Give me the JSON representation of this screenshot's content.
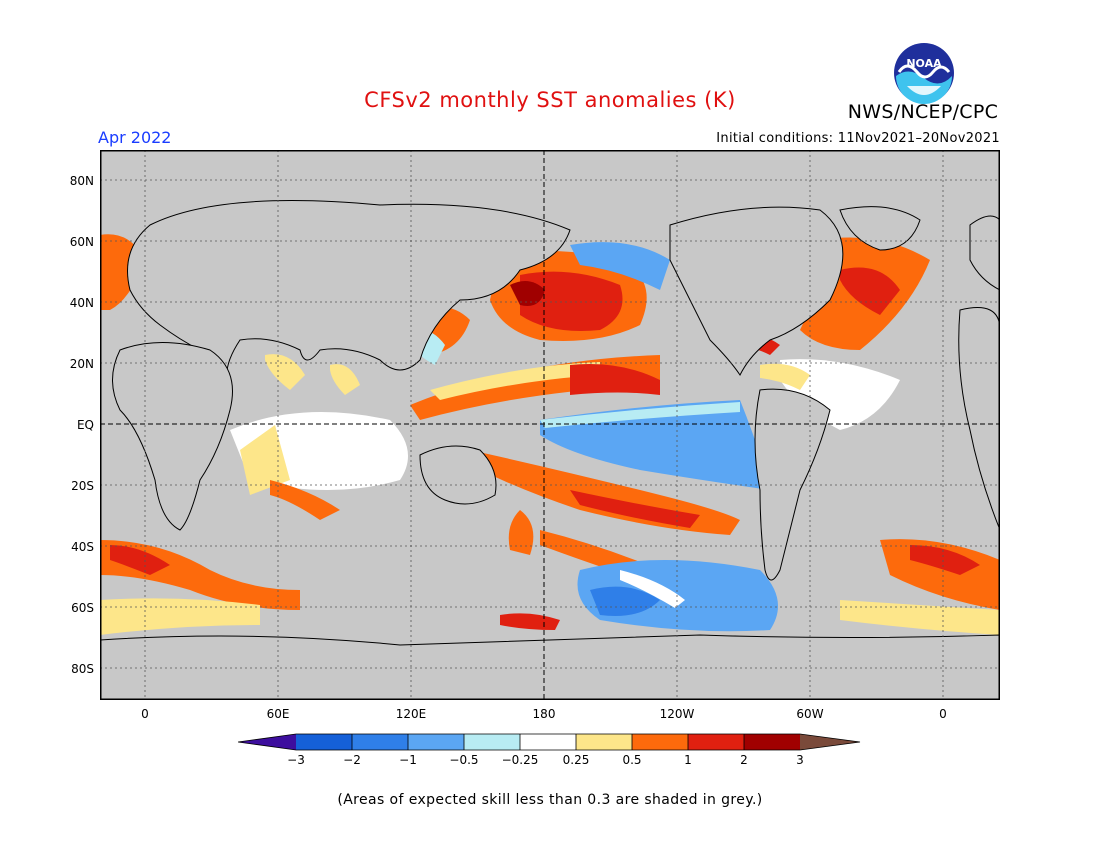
{
  "title": "CFSv2 monthly SST anomalies (K)",
  "agency": "NWS/NCEP/CPC",
  "logo_text": "NOAA",
  "month": "Apr 2022",
  "initial_conditions": "Initial conditions: 11Nov2021–20Nov2021",
  "lat_labels": [
    "80N",
    "60N",
    "40N",
    "20N",
    "EQ",
    "20S",
    "40S",
    "60S",
    "80S"
  ],
  "lon_labels": [
    "0",
    "60E",
    "120E",
    "180",
    "120W",
    "60W",
    "0"
  ],
  "colorbar": {
    "labels": [
      "−3",
      "−2",
      "−1",
      "−0.5",
      "−0.25",
      "0.25",
      "0.5",
      "1",
      "2",
      "3"
    ],
    "colors": [
      "#3d0e9e",
      "#1560d8",
      "#2f7fe8",
      "#5ba6f3",
      "#b8ecf3",
      "#ffffff",
      "#fde68a",
      "#fd6a0c",
      "#e02010",
      "#a00000",
      "#7a4a3a"
    ]
  },
  "footnote": "(Areas of expected skill less than 0.3 are shaded in grey.)",
  "map_colors": {
    "ocean_grey": "#c8c8c8",
    "land": "#c8c8c8",
    "neutral": "#ffffff",
    "weak_warm": "#fde68a",
    "warm": "#fd6a0c",
    "hot": "#e02010",
    "very_hot": "#a00000",
    "weak_cool": "#b8ecf3",
    "cool": "#5ba6f3",
    "colder": "#2f7fe8"
  }
}
